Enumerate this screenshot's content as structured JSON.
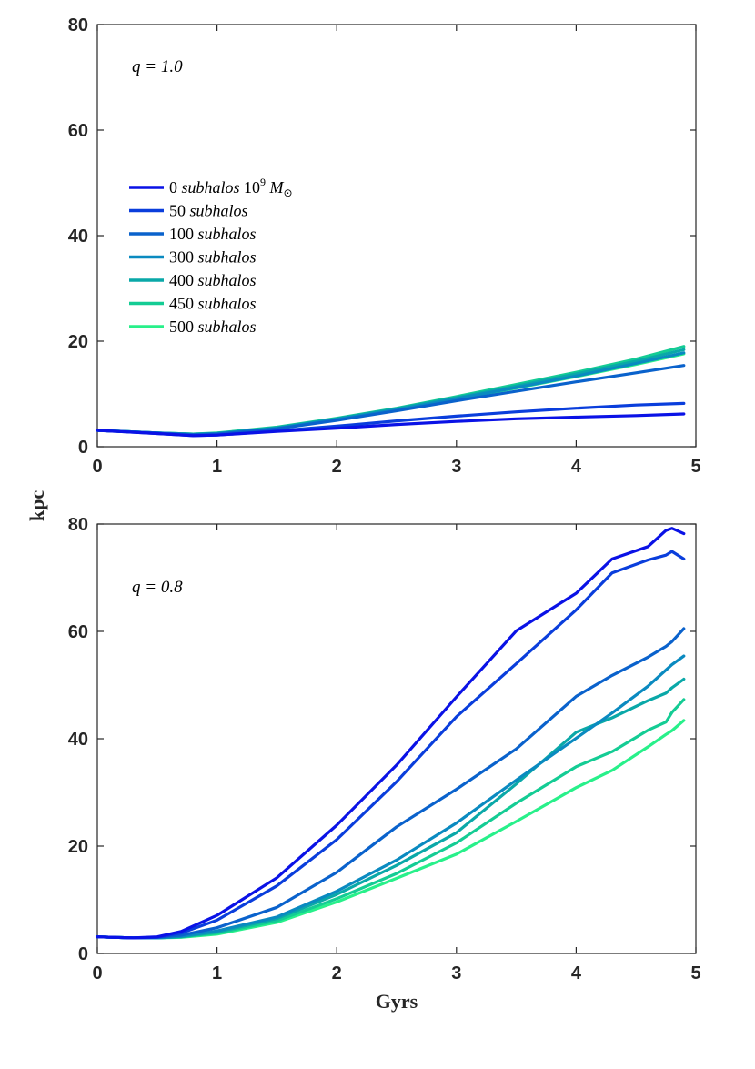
{
  "chart_data": [
    {
      "type": "line",
      "panel": "top",
      "annotation": "q = 1.0",
      "xlabel": "",
      "ylabel": "",
      "xlim": [
        0,
        5
      ],
      "ylim": [
        0,
        80
      ],
      "xticks": [
        "0",
        "1",
        "2",
        "3",
        "4",
        "5"
      ],
      "yticks": [
        "0",
        "20",
        "40",
        "60",
        "80"
      ],
      "legend": {
        "placement": "upper-left",
        "entries": [
          "0 subhalos 10^9 M⊙",
          "50 subhalos",
          "100 subhalos",
          "300 subhalos",
          "400 subhalos",
          "450 subhalos",
          "500 subhalos"
        ]
      },
      "x": [
        0,
        0.5,
        0.8,
        1.0,
        1.5,
        2.0,
        2.5,
        3.0,
        3.5,
        4.0,
        4.5,
        4.9
      ],
      "series": [
        {
          "name": "0 subhalos",
          "color": "#0a12e6",
          "values": [
            3.1,
            2.5,
            2.1,
            2.2,
            2.9,
            3.5,
            4.2,
            4.8,
            5.3,
            5.6,
            5.9,
            6.2
          ]
        },
        {
          "name": "50 subhalos",
          "color": "#0a3edc",
          "values": [
            3.1,
            2.5,
            2.1,
            2.2,
            3.0,
            3.9,
            4.9,
            5.8,
            6.6,
            7.3,
            7.9,
            8.2
          ]
        },
        {
          "name": "100 subhalos",
          "color": "#0a62cc",
          "values": [
            3.1,
            2.6,
            2.3,
            2.4,
            3.4,
            5.0,
            6.8,
            8.7,
            10.5,
            12.3,
            14.0,
            15.4
          ]
        },
        {
          "name": "300 subhalos",
          "color": "#0a8ac0",
          "values": [
            3.1,
            2.6,
            2.3,
            2.5,
            3.5,
            5.2,
            7.0,
            9.1,
            11.2,
            13.4,
            15.8,
            17.8
          ]
        },
        {
          "name": "400 subhalos",
          "color": "#0aa8a8",
          "values": [
            3.1,
            2.6,
            2.4,
            2.5,
            3.6,
            5.3,
            7.2,
            9.3,
            11.5,
            13.8,
            16.2,
            18.4
          ]
        },
        {
          "name": "450 subhalos",
          "color": "#14cc94",
          "values": [
            3.1,
            2.6,
            2.4,
            2.6,
            3.7,
            5.4,
            7.3,
            9.5,
            11.8,
            14.1,
            16.6,
            19.0
          ]
        },
        {
          "name": "500 subhalos",
          "color": "#28f08a",
          "values": [
            3.1,
            2.6,
            2.4,
            2.5,
            3.6,
            5.2,
            7.0,
            9.0,
            11.1,
            13.3,
            15.6,
            17.6
          ]
        }
      ]
    },
    {
      "type": "line",
      "panel": "bottom",
      "annotation": "q = 0.8",
      "xlabel": "Gyrs",
      "ylabel": "kpc",
      "xlim": [
        0,
        5
      ],
      "ylim": [
        0,
        80
      ],
      "xticks": [
        "0",
        "1",
        "2",
        "3",
        "4",
        "5"
      ],
      "yticks": [
        "0",
        "20",
        "40",
        "60",
        "80"
      ],
      "x": [
        0,
        0.3,
        0.5,
        0.7,
        1.0,
        1.5,
        2.0,
        2.5,
        3.0,
        3.5,
        4.0,
        4.3,
        4.6,
        4.75,
        4.8,
        4.9
      ],
      "series": [
        {
          "name": "0 subhalos",
          "color": "#0a12e6",
          "values": [
            3.1,
            2.9,
            3.1,
            4.1,
            7.1,
            14.1,
            23.9,
            35.1,
            47.8,
            60.1,
            67.1,
            73.5,
            75.8,
            78.8,
            79.2,
            78.2
          ]
        },
        {
          "name": "50 subhalos",
          "color": "#0a3edc",
          "values": [
            3.1,
            2.9,
            3.0,
            3.8,
            6.2,
            12.6,
            21.2,
            32.0,
            44.1,
            54.0,
            64.0,
            70.9,
            73.3,
            74.2,
            74.9,
            73.5
          ]
        },
        {
          "name": "100 subhalos",
          "color": "#0a62cc",
          "values": [
            3.1,
            2.9,
            3.0,
            3.4,
            4.8,
            8.6,
            15.1,
            23.6,
            30.6,
            38.1,
            47.9,
            51.8,
            55.2,
            57.2,
            58.1,
            60.5
          ]
        },
        {
          "name": "300 subhalos",
          "color": "#0a8ac0",
          "values": [
            3.1,
            2.9,
            2.9,
            3.2,
            4.2,
            6.8,
            11.6,
            17.4,
            24.3,
            32.3,
            40.1,
            44.8,
            49.8,
            52.8,
            53.8,
            55.4
          ]
        },
        {
          "name": "400 subhalos",
          "color": "#0aa8a8",
          "values": [
            3.1,
            2.9,
            2.9,
            3.1,
            4.0,
            6.5,
            11.0,
            16.4,
            22.5,
            31.6,
            41.2,
            43.9,
            47.1,
            48.5,
            49.5,
            51.1
          ]
        },
        {
          "name": "450 subhalos",
          "color": "#14cc94",
          "values": [
            3.1,
            2.9,
            2.9,
            3.1,
            3.8,
            6.1,
            10.2,
            14.9,
            20.6,
            28.0,
            34.8,
            37.6,
            41.6,
            43.1,
            44.9,
            47.3
          ]
        },
        {
          "name": "500 subhalos",
          "color": "#28f08a",
          "values": [
            3.1,
            2.9,
            2.9,
            3.0,
            3.6,
            5.8,
            9.6,
            14.0,
            18.5,
            24.6,
            30.9,
            34.1,
            38.5,
            40.8,
            41.5,
            43.4
          ]
        }
      ]
    }
  ],
  "legend_text": {
    "line0_prefix": "0",
    "line0_word": "subhalos",
    "line0_mass_base": "10",
    "line0_mass_exp": "9",
    "line0_mass_symbol": "M",
    "line0_mass_sub": "⊙",
    "line1": "50 subhalos",
    "line2": "100 subhalos",
    "line3": "300 subhalos",
    "line4": "400 subhalos",
    "line5": "450 subhalos",
    "line6": "500 subhalos"
  }
}
